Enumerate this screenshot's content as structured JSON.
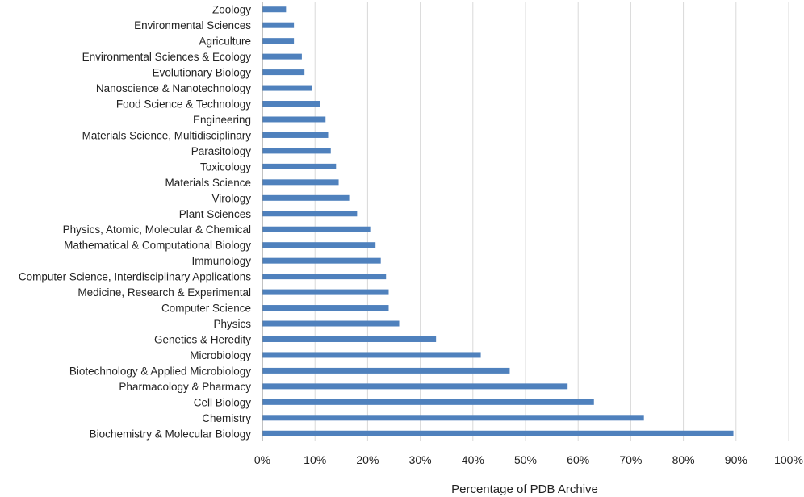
{
  "chart_data": {
    "type": "bar",
    "orientation": "horizontal",
    "title": "",
    "xlabel": "Percentage of PDB Archive",
    "ylabel": "",
    "xlim": [
      0,
      100
    ],
    "x_ticks": [
      "0%",
      "10%",
      "20%",
      "30%",
      "40%",
      "50%",
      "60%",
      "70%",
      "80%",
      "90%",
      "100%"
    ],
    "grid": "vertical",
    "legend": "none",
    "bar_color": "#4f81bd",
    "grid_color": "#d9d9d9",
    "categories": [
      "Zoology",
      "Environmental Sciences",
      "Agriculture",
      "Environmental Sciences & Ecology",
      "Evolutionary Biology",
      "Nanoscience & Nanotechnology",
      "Food Science & Technology",
      "Engineering",
      "Materials Science, Multidisciplinary",
      "Parasitology",
      "Toxicology",
      "Materials Science",
      "Virology",
      "Plant Sciences",
      "Physics, Atomic, Molecular & Chemical",
      "Mathematical & Computational Biology",
      "Immunology",
      "Computer Science, Interdisciplinary Applications",
      "Medicine, Research & Experimental",
      "Computer Science",
      "Physics",
      "Genetics & Heredity",
      "Microbiology",
      "Biotechnology & Applied Microbiology",
      "Pharmacology & Pharmacy",
      "Cell Biology",
      "Chemistry",
      "Biochemistry & Molecular Biology"
    ],
    "values": [
      4.5,
      6,
      6,
      7.5,
      8,
      9.5,
      11,
      12,
      12.5,
      13,
      14,
      14.5,
      16.5,
      18,
      20.5,
      21.5,
      22.5,
      23.5,
      24,
      24,
      26,
      33,
      41.5,
      47,
      58,
      63,
      72.5,
      89.5
    ]
  }
}
